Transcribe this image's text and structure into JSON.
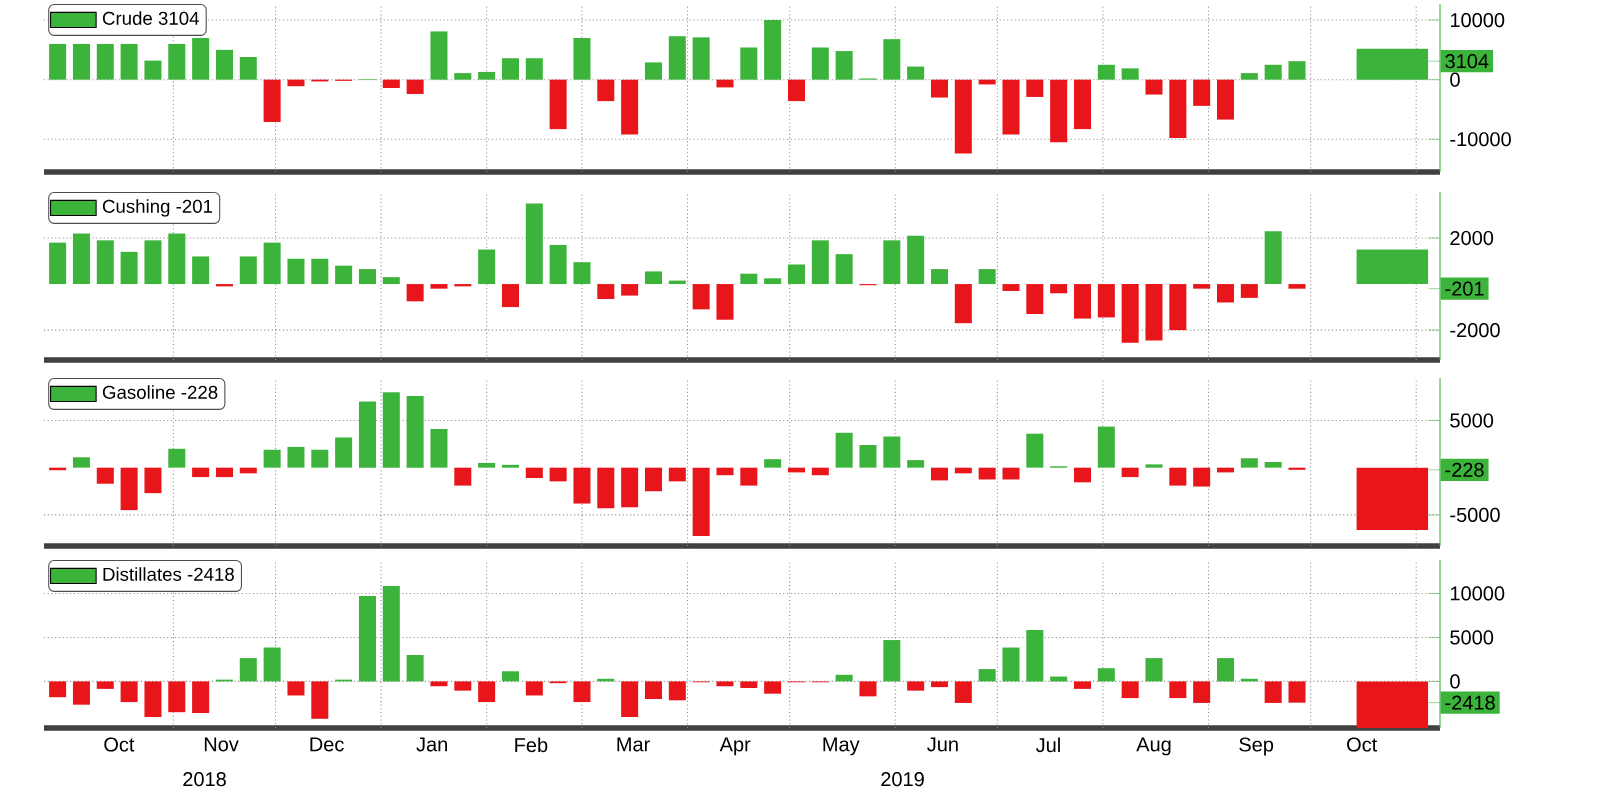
{
  "chart_data": [
    {
      "type": "bar",
      "x": [
        "2018-09-28",
        "2018-10-05",
        "2018-10-12",
        "2018-10-19",
        "2018-10-26",
        "2018-11-02",
        "2018-11-09",
        "2018-11-16",
        "2018-11-23",
        "2018-11-30",
        "2018-12-07",
        "2018-12-14",
        "2018-12-21",
        "2018-12-28",
        "2019-01-04",
        "2019-01-11",
        "2019-01-18",
        "2019-01-25",
        "2019-02-01",
        "2019-02-08",
        "2019-02-15",
        "2019-02-22",
        "2019-03-01",
        "2019-03-08",
        "2019-03-15",
        "2019-03-22",
        "2019-03-29",
        "2019-04-05",
        "2019-04-12",
        "2019-04-19",
        "2019-04-26",
        "2019-05-03",
        "2019-05-10",
        "2019-05-17",
        "2019-05-24",
        "2019-05-31",
        "2019-06-07",
        "2019-06-14",
        "2019-06-21",
        "2019-06-28",
        "2019-07-05",
        "2019-07-12",
        "2019-07-19",
        "2019-07-26",
        "2019-08-02",
        "2019-08-09",
        "2019-08-16",
        "2019-08-23",
        "2019-08-30",
        "2019-09-06",
        "2019-09-13",
        "2019-09-20",
        "2019-09-27"
      ],
      "series": [
        {
          "name": "Crude  3104",
          "color": "#3cb43c",
          "values": [
            6000,
            6000,
            6000,
            6000,
            3200,
            6000,
            7000,
            5000,
            3800,
            -7100,
            -1100,
            -300,
            -200,
            100,
            -1400,
            -2400,
            8100,
            1100,
            1300,
            3600,
            3600,
            -8300,
            7000,
            -3600,
            -9200,
            2900,
            7300,
            7100,
            -1300,
            5400,
            10000,
            -3600,
            5400,
            4800,
            200,
            6800,
            2200,
            -3000,
            -12400,
            -800,
            -9200,
            -2900,
            -10500,
            -8300,
            2500,
            1900,
            -2500,
            -9800,
            -4400,
            -6700,
            1100,
            2500,
            3104
          ],
          "colors": [
            "#3cb43c",
            "#3cb43c",
            "#3cb43c",
            "#3cb43c",
            "#3cb43c",
            "#3cb43c",
            "#3cb43c",
            "#3cb43c",
            "#3cb43c",
            "#e8161b",
            "#e8161b",
            "#e8161b",
            "#e8161b",
            "#3cb43c",
            "#e8161b",
            "#e8161b",
            "#3cb43c",
            "#3cb43c",
            "#3cb43c",
            "#3cb43c",
            "#3cb43c",
            "#e8161b",
            "#3cb43c",
            "#e8161b",
            "#e8161b",
            "#3cb43c",
            "#3cb43c",
            "#3cb43c",
            "#e8161b",
            "#3cb43c",
            "#3cb43c",
            "#e8161b",
            "#3cb43c",
            "#3cb43c",
            "#3cb43c",
            "#3cb43c",
            "#3cb43c",
            "#e8161b",
            "#e8161b",
            "#e8161b",
            "#e8161b",
            "#e8161b",
            "#e8161b",
            "#e8161b",
            "#3cb43c",
            "#3cb43c",
            "#e8161b",
            "#e8161b",
            "#e8161b",
            "#e8161b",
            "#3cb43c",
            "#3cb43c",
            "#3cb43c"
          ]
        },
        {
          "x": [
            "2019-10-25"
          ],
          "values": [
            5200
          ],
          "colors": [
            "#3cb43c"
          ]
        }
      ],
      "xlim": [
        "2018-09-24",
        "2019-11-08"
      ],
      "xticks": [
        {
          "value": "2018-11-01",
          "label": null
        },
        {
          "value": "2018-12-01",
          "label": null
        },
        {
          "value": "2019-01-01",
          "label": null
        },
        {
          "value": "2019-02-01",
          "label": null
        },
        {
          "value": "2019-03-01",
          "label": null
        },
        {
          "value": "2019-04-01",
          "label": null
        },
        {
          "value": "2019-05-01",
          "label": null
        },
        {
          "value": "2019-06-01",
          "label": null
        },
        {
          "value": "2019-07-01",
          "label": null
        },
        {
          "value": "2019-08-01",
          "label": null
        },
        {
          "value": "2019-09-01",
          "label": null
        },
        {
          "value": "2019-10-01",
          "label": null
        },
        {
          "value": "2019-11-01",
          "label": null
        }
      ],
      "ylim": [
        -15500,
        12700
      ],
      "yticks": [
        -10000,
        0,
        10000,
        {
          "value": 3104,
          "label": "3104"
        }
      ],
      "grid": true,
      "legend": "top left",
      "tick_labels": "y"
    },
    {
      "type": "bar",
      "x": [
        "2018-09-28",
        "2018-10-05",
        "2018-10-12",
        "2018-10-19",
        "2018-10-26",
        "2018-11-02",
        "2018-11-09",
        "2018-11-16",
        "2018-11-23",
        "2018-11-30",
        "2018-12-07",
        "2018-12-14",
        "2018-12-21",
        "2018-12-28",
        "2019-01-04",
        "2019-01-11",
        "2019-01-18",
        "2019-01-25",
        "2019-02-01",
        "2019-02-08",
        "2019-02-15",
        "2019-02-22",
        "2019-03-01",
        "2019-03-08",
        "2019-03-15",
        "2019-03-22",
        "2019-03-29",
        "2019-04-05",
        "2019-04-12",
        "2019-04-19",
        "2019-04-26",
        "2019-05-03",
        "2019-05-10",
        "2019-05-17",
        "2019-05-24",
        "2019-05-31",
        "2019-06-07",
        "2019-06-14",
        "2019-06-21",
        "2019-06-28",
        "2019-07-05",
        "2019-07-12",
        "2019-07-19",
        "2019-07-26",
        "2019-08-02",
        "2019-08-09",
        "2019-08-16",
        "2019-08-23",
        "2019-08-30",
        "2019-09-06",
        "2019-09-13",
        "2019-09-20",
        "2019-09-27"
      ],
      "series": [
        {
          "name": "Cushing  -201",
          "color": "#3cb43c",
          "values": [
            1800,
            2200,
            1900,
            1400,
            1900,
            2200,
            1200,
            -100,
            1200,
            1800,
            1100,
            1100,
            800,
            650,
            300,
            -750,
            -200,
            -100,
            1500,
            -1000,
            3500,
            1700,
            950,
            -650,
            -500,
            550,
            150,
            -1100,
            -1550,
            450,
            250,
            850,
            1900,
            1300,
            -50,
            1900,
            2100,
            650,
            -1700,
            650,
            -300,
            -1300,
            -400,
            -1500,
            -1450,
            -2550,
            -2450,
            -2000,
            -200,
            -800,
            -600,
            2300,
            -201
          ],
          "colors": [
            "#3cb43c",
            "#3cb43c",
            "#3cb43c",
            "#3cb43c",
            "#3cb43c",
            "#3cb43c",
            "#3cb43c",
            "#e8161b",
            "#3cb43c",
            "#3cb43c",
            "#3cb43c",
            "#3cb43c",
            "#3cb43c",
            "#3cb43c",
            "#3cb43c",
            "#e8161b",
            "#e8161b",
            "#e8161b",
            "#3cb43c",
            "#e8161b",
            "#3cb43c",
            "#3cb43c",
            "#3cb43c",
            "#e8161b",
            "#e8161b",
            "#3cb43c",
            "#3cb43c",
            "#e8161b",
            "#e8161b",
            "#3cb43c",
            "#3cb43c",
            "#3cb43c",
            "#3cb43c",
            "#3cb43c",
            "#e8161b",
            "#3cb43c",
            "#3cb43c",
            "#3cb43c",
            "#e8161b",
            "#3cb43c",
            "#e8161b",
            "#e8161b",
            "#e8161b",
            "#e8161b",
            "#e8161b",
            "#e8161b",
            "#e8161b",
            "#e8161b",
            "#e8161b",
            "#e8161b",
            "#e8161b",
            "#3cb43c",
            "#e8161b"
          ]
        },
        {
          "x": [
            "2019-10-25"
          ],
          "values": [
            1500
          ],
          "colors": [
            "#3cb43c"
          ]
        }
      ],
      "xlim": [
        "2018-09-24",
        "2019-11-08"
      ],
      "xticks": [
        {
          "value": "2018-11-01",
          "label": null
        },
        {
          "value": "2018-12-01",
          "label": null
        },
        {
          "value": "2019-01-01",
          "label": null
        },
        {
          "value": "2019-02-01",
          "label": null
        },
        {
          "value": "2019-03-01",
          "label": null
        },
        {
          "value": "2019-04-01",
          "label": null
        },
        {
          "value": "2019-05-01",
          "label": null
        },
        {
          "value": "2019-06-01",
          "label": null
        },
        {
          "value": "2019-07-01",
          "label": null
        },
        {
          "value": "2019-08-01",
          "label": null
        },
        {
          "value": "2019-09-01",
          "label": null
        },
        {
          "value": "2019-10-01",
          "label": null
        },
        {
          "value": "2019-11-01",
          "label": null
        }
      ],
      "ylim": [
        -3300,
        4000
      ],
      "yticks": [
        -2000,
        2000,
        {
          "value": -201,
          "label": "-201"
        }
      ],
      "grid": true,
      "legend": "top left",
      "tick_labels": "y"
    },
    {
      "type": "bar",
      "x": [
        "2018-09-28",
        "2018-10-05",
        "2018-10-12",
        "2018-10-19",
        "2018-10-26",
        "2018-11-02",
        "2018-11-09",
        "2018-11-16",
        "2018-11-23",
        "2018-11-30",
        "2018-12-07",
        "2018-12-14",
        "2018-12-21",
        "2018-12-28",
        "2019-01-04",
        "2019-01-11",
        "2019-01-18",
        "2019-01-25",
        "2019-02-01",
        "2019-02-08",
        "2019-02-15",
        "2019-02-22",
        "2019-03-01",
        "2019-03-08",
        "2019-03-15",
        "2019-03-22",
        "2019-03-29",
        "2019-04-05",
        "2019-04-12",
        "2019-04-19",
        "2019-04-26",
        "2019-05-03",
        "2019-05-10",
        "2019-05-17",
        "2019-05-24",
        "2019-05-31",
        "2019-06-07",
        "2019-06-14",
        "2019-06-21",
        "2019-06-28",
        "2019-07-05",
        "2019-07-12",
        "2019-07-19",
        "2019-07-26",
        "2019-08-02",
        "2019-08-09",
        "2019-08-16",
        "2019-08-23",
        "2019-08-30",
        "2019-09-06",
        "2019-09-13",
        "2019-09-20",
        "2019-09-27"
      ],
      "series": [
        {
          "name": "Gasoline  -228",
          "color": "#3cb43c",
          "values": [
            -270,
            1100,
            -1700,
            -4500,
            -2700,
            2000,
            -1000,
            -1000,
            -600,
            1900,
            2200,
            1900,
            3200,
            7000,
            8000,
            7600,
            4100,
            -1900,
            500,
            300,
            -1100,
            -1450,
            -3800,
            -4300,
            -4200,
            -2500,
            -1450,
            -7250,
            -800,
            -1900,
            900,
            -500,
            -800,
            3700,
            2400,
            3300,
            800,
            -1350,
            -600,
            -1250,
            -1250,
            3600,
            150,
            -1550,
            4350,
            -1000,
            350,
            -1900,
            -2000,
            -500,
            1000,
            600,
            -228
          ],
          "colors": [
            "#e8161b",
            "#3cb43c",
            "#e8161b",
            "#e8161b",
            "#e8161b",
            "#3cb43c",
            "#e8161b",
            "#e8161b",
            "#e8161b",
            "#3cb43c",
            "#3cb43c",
            "#3cb43c",
            "#3cb43c",
            "#3cb43c",
            "#3cb43c",
            "#3cb43c",
            "#3cb43c",
            "#e8161b",
            "#3cb43c",
            "#3cb43c",
            "#e8161b",
            "#e8161b",
            "#e8161b",
            "#e8161b",
            "#e8161b",
            "#e8161b",
            "#e8161b",
            "#e8161b",
            "#e8161b",
            "#e8161b",
            "#3cb43c",
            "#e8161b",
            "#e8161b",
            "#3cb43c",
            "#3cb43c",
            "#3cb43c",
            "#3cb43c",
            "#e8161b",
            "#e8161b",
            "#e8161b",
            "#e8161b",
            "#3cb43c",
            "#3cb43c",
            "#e8161b",
            "#3cb43c",
            "#e8161b",
            "#3cb43c",
            "#e8161b",
            "#e8161b",
            "#e8161b",
            "#3cb43c",
            "#3cb43c",
            "#e8161b"
          ]
        },
        {
          "x": [
            "2019-10-25"
          ],
          "values": [
            -6600
          ],
          "colors": [
            "#e8161b"
          ]
        }
      ],
      "xlim": [
        "2018-09-24",
        "2019-11-08"
      ],
      "xticks": [
        {
          "value": "2018-11-01",
          "label": null
        },
        {
          "value": "2018-12-01",
          "label": null
        },
        {
          "value": "2019-01-01",
          "label": null
        },
        {
          "value": "2019-02-01",
          "label": null
        },
        {
          "value": "2019-03-01",
          "label": null
        },
        {
          "value": "2019-04-01",
          "label": null
        },
        {
          "value": "2019-05-01",
          "label": null
        },
        {
          "value": "2019-06-01",
          "label": null
        },
        {
          "value": "2019-07-01",
          "label": null
        },
        {
          "value": "2019-08-01",
          "label": null
        },
        {
          "value": "2019-09-01",
          "label": null
        },
        {
          "value": "2019-10-01",
          "label": null
        },
        {
          "value": "2019-11-01",
          "label": null
        }
      ],
      "ylim": [
        -8300,
        9500
      ],
      "yticks": [
        -5000,
        5000,
        {
          "value": -228,
          "label": "-228"
        }
      ],
      "grid": true,
      "legend": "top left",
      "tick_labels": "y"
    },
    {
      "type": "bar",
      "x": [
        "2018-09-28",
        "2018-10-05",
        "2018-10-12",
        "2018-10-19",
        "2018-10-26",
        "2018-11-02",
        "2018-11-09",
        "2018-11-16",
        "2018-11-23",
        "2018-11-30",
        "2018-12-07",
        "2018-12-14",
        "2018-12-21",
        "2018-12-28",
        "2019-01-04",
        "2019-01-11",
        "2019-01-18",
        "2019-01-25",
        "2019-02-01",
        "2019-02-08",
        "2019-02-15",
        "2019-02-22",
        "2019-03-01",
        "2019-03-08",
        "2019-03-15",
        "2019-03-22",
        "2019-03-29",
        "2019-04-05",
        "2019-04-12",
        "2019-04-19",
        "2019-04-26",
        "2019-05-03",
        "2019-05-10",
        "2019-05-17",
        "2019-05-24",
        "2019-05-31",
        "2019-06-07",
        "2019-06-14",
        "2019-06-21",
        "2019-06-28",
        "2019-07-05",
        "2019-07-12",
        "2019-07-19",
        "2019-07-26",
        "2019-08-02",
        "2019-08-09",
        "2019-08-16",
        "2019-08-23",
        "2019-08-30",
        "2019-09-06",
        "2019-09-13",
        "2019-09-20",
        "2019-09-27"
      ],
      "series": [
        {
          "name": "Distillates  -2418",
          "color": "#3cb43c",
          "values": [
            -1800,
            -2650,
            -850,
            -2350,
            -4050,
            -3500,
            -3600,
            200,
            2650,
            3850,
            -1600,
            -4250,
            200,
            9700,
            10850,
            3000,
            -550,
            -1050,
            -2350,
            1150,
            -1600,
            -200,
            -2350,
            300,
            -4050,
            -2000,
            -2150,
            -100,
            -550,
            -750,
            -1400,
            -100,
            -100,
            750,
            -1700,
            4700,
            -1050,
            -650,
            -2450,
            1400,
            3850,
            5850,
            550,
            -850,
            1500,
            -1900,
            2650,
            -1900,
            -2450,
            2650,
            300,
            -2450,
            -2418
          ],
          "colors": [
            "#e8161b",
            "#e8161b",
            "#e8161b",
            "#e8161b",
            "#e8161b",
            "#e8161b",
            "#e8161b",
            "#3cb43c",
            "#3cb43c",
            "#3cb43c",
            "#e8161b",
            "#e8161b",
            "#3cb43c",
            "#3cb43c",
            "#3cb43c",
            "#3cb43c",
            "#e8161b",
            "#e8161b",
            "#e8161b",
            "#3cb43c",
            "#e8161b",
            "#e8161b",
            "#e8161b",
            "#3cb43c",
            "#e8161b",
            "#e8161b",
            "#e8161b",
            "#e8161b",
            "#e8161b",
            "#e8161b",
            "#e8161b",
            "#e8161b",
            "#e8161b",
            "#3cb43c",
            "#e8161b",
            "#3cb43c",
            "#e8161b",
            "#e8161b",
            "#e8161b",
            "#3cb43c",
            "#3cb43c",
            "#3cb43c",
            "#3cb43c",
            "#e8161b",
            "#3cb43c",
            "#e8161b",
            "#3cb43c",
            "#e8161b",
            "#e8161b",
            "#3cb43c",
            "#3cb43c",
            "#e8161b",
            "#e8161b"
          ]
        },
        {
          "x": [
            "2019-10-25"
          ],
          "values": [
            -5300
          ],
          "colors": [
            "#e8161b"
          ]
        }
      ],
      "xlim": [
        "2018-09-24",
        "2019-11-08"
      ],
      "xticks": [
        {
          "value": "2018-10-16",
          "label": "Oct"
        },
        {
          "value": "2018-11-15",
          "label": "Nov"
        },
        {
          "value": "2018-12-16",
          "label": "Dec"
        },
        {
          "value": "2019-01-16",
          "label": "Jan"
        },
        {
          "value": "2019-02-14",
          "label": "Feb"
        },
        {
          "value": "2019-03-16",
          "label": "Mar"
        },
        {
          "value": "2019-04-15",
          "label": "Apr"
        },
        {
          "value": "2019-05-16",
          "label": "May"
        },
        {
          "value": "2019-06-15",
          "label": "Jun"
        },
        {
          "value": "2019-07-16",
          "label": "Jul"
        },
        {
          "value": "2019-08-16",
          "label": "Aug"
        },
        {
          "value": "2019-09-15",
          "label": "Sep"
        },
        {
          "value": "2019-10-16",
          "label": "Oct"
        },
        {
          "value": "2018-11-01",
          "label": null
        },
        {
          "value": "2018-12-01",
          "label": null
        },
        {
          "value": "2019-01-01",
          "label": null
        },
        {
          "value": "2019-02-01",
          "label": null
        },
        {
          "value": "2019-03-01",
          "label": null
        },
        {
          "value": "2019-04-01",
          "label": null
        },
        {
          "value": "2019-05-01",
          "label": null
        },
        {
          "value": "2019-06-01",
          "label": null
        },
        {
          "value": "2019-07-01",
          "label": null
        },
        {
          "value": "2019-08-01",
          "label": null
        },
        {
          "value": "2019-09-01",
          "label": null
        },
        {
          "value": "2019-10-01",
          "label": null
        },
        {
          "value": "2019-11-01",
          "label": null
        }
      ],
      "ylim": [
        -5300,
        13800
      ],
      "yticks": [
        0,
        5000,
        10000,
        {
          "value": -2418,
          "label": "-2418"
        }
      ],
      "grid": true,
      "legend": "top left",
      "annotations": [
        "2018",
        "2019"
      ]
    }
  ]
}
